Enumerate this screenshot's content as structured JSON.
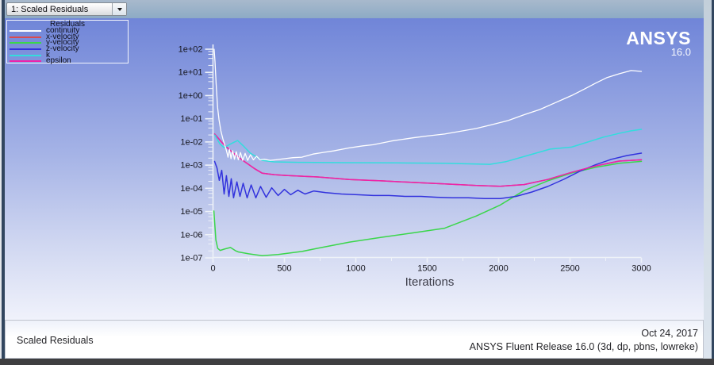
{
  "window": {
    "selector": {
      "value": "1: Scaled Residuals"
    },
    "logo": {
      "brand": "ANSYS",
      "version": "16.0"
    },
    "status_bar": {
      "left_text": "Scaled Residuals",
      "date": "Oct 24, 2017",
      "release": "ANSYS Fluent Release 16.0 (3d, dp, pbns, lowreke)"
    }
  },
  "legend": {
    "title": "Residuals"
  },
  "chart_data": {
    "type": "line",
    "title": "Scaled Residuals",
    "xlabel": "Iterations",
    "ylabel": "",
    "xlim": [
      0,
      3000
    ],
    "x_ticks": [
      0,
      500,
      1000,
      1500,
      2000,
      2500,
      3000
    ],
    "x_minor_step": 250,
    "y_scale": "log",
    "ylim": [
      1e-07,
      100.0
    ],
    "y_tick_labels": [
      "1e+02",
      "1e+01",
      "1e+00",
      "1e-01",
      "1e-02",
      "1e-03",
      "1e-04",
      "1e-05",
      "1e-06",
      "1e-07"
    ],
    "y_minor_divisions": [
      2,
      4,
      6,
      8
    ],
    "grid": false,
    "legend_position": "top-left",
    "axis_color": "#eef2f8",
    "tick_label_color": "#16161e",
    "series": [
      {
        "name": "continuity",
        "color": "#ffffff",
        "points": [
          [
            8,
            100
          ],
          [
            14,
            30
          ],
          [
            22,
            3
          ],
          [
            32,
            0.3
          ],
          [
            42,
            0.09
          ],
          [
            55,
            0.03
          ],
          [
            70,
            0.013
          ],
          [
            85,
            0.0066
          ],
          [
            95,
            0.004
          ],
          [
            105,
            0.0022
          ],
          [
            115,
            0.0048
          ],
          [
            126,
            0.0019
          ],
          [
            138,
            0.0042
          ],
          [
            150,
            0.0018
          ],
          [
            163,
            0.0038
          ],
          [
            177,
            0.0017
          ],
          [
            192,
            0.0035
          ],
          [
            208,
            0.0016
          ],
          [
            225,
            0.0032
          ],
          [
            243,
            0.0016
          ],
          [
            262,
            0.0028
          ],
          [
            283,
            0.0017
          ],
          [
            305,
            0.0024
          ],
          [
            330,
            0.0017
          ],
          [
            360,
            0.0018
          ],
          [
            400,
            0.0016
          ],
          [
            440,
            0.0017
          ],
          [
            500,
            0.0019
          ],
          [
            560,
            0.0021
          ],
          [
            622,
            0.0022
          ],
          [
            700,
            0.003
          ],
          [
            780,
            0.0036
          ],
          [
            844,
            0.0041
          ],
          [
            950,
            0.0055
          ],
          [
            1050,
            0.0068
          ],
          [
            1122,
            0.0076
          ],
          [
            1250,
            0.011
          ],
          [
            1400,
            0.015
          ],
          [
            1500,
            0.018
          ],
          [
            1622,
            0.022
          ],
          [
            1750,
            0.03
          ],
          [
            1844,
            0.038
          ],
          [
            1950,
            0.055
          ],
          [
            2067,
            0.084
          ],
          [
            2180,
            0.15
          ],
          [
            2289,
            0.25
          ],
          [
            2400,
            0.5
          ],
          [
            2511,
            1.0
          ],
          [
            2600,
            1.9
          ],
          [
            2678,
            3.4
          ],
          [
            2760,
            6.0
          ],
          [
            2844,
            8.7
          ],
          [
            2928,
            12.0
          ],
          [
            3000,
            11.0
          ]
        ]
      },
      {
        "name": "x-velocity",
        "color": "#d84a50",
        "points": [
          [
            11,
            0.022
          ],
          [
            67,
            0.0088
          ],
          [
            122,
            0.0042
          ],
          [
            178,
            0.0022
          ],
          [
            233,
            0.00126
          ],
          [
            289,
            0.00072
          ],
          [
            344,
            0.00045
          ],
          [
            428,
            0.00039
          ],
          [
            511,
            0.00036
          ],
          [
            733,
            0.00031
          ],
          [
            956,
            0.00024
          ],
          [
            1178,
            0.00021
          ],
          [
            1400,
            0.00018
          ],
          [
            1622,
            0.000155
          ],
          [
            1844,
            0.000133
          ],
          [
            2011,
            0.000123
          ],
          [
            2178,
            0.000145
          ],
          [
            2344,
            0.00024
          ],
          [
            2511,
            0.00049
          ],
          [
            2678,
            0.00092
          ],
          [
            2844,
            0.0015
          ],
          [
            3000,
            0.0017
          ]
        ]
      },
      {
        "name": "y-velocity",
        "color": "#3bd64b",
        "points": [
          [
            6,
            1.05e-05
          ],
          [
            20,
            6e-07
          ],
          [
            33,
            2.6e-07
          ],
          [
            50,
            2.1e-07
          ],
          [
            80,
            2.4e-07
          ],
          [
            122,
            2.8e-07
          ],
          [
            160,
            2e-07
          ],
          [
            178,
            1.8e-07
          ],
          [
            250,
            1.5e-07
          ],
          [
            344,
            1.25e-07
          ],
          [
            456,
            1.4e-07
          ],
          [
            622,
            1.9e-07
          ],
          [
            733,
            2.6e-07
          ],
          [
            956,
            4.8e-07
          ],
          [
            1178,
            7.7e-07
          ],
          [
            1400,
            1.2e-06
          ],
          [
            1622,
            1.9e-06
          ],
          [
            1844,
            6.4e-06
          ],
          [
            2011,
            1.9e-05
          ],
          [
            2178,
            8e-05
          ],
          [
            2344,
            0.00021
          ],
          [
            2511,
            0.00046
          ],
          [
            2678,
            0.0008
          ],
          [
            2844,
            0.0012
          ],
          [
            3000,
            0.00145
          ]
        ]
      },
      {
        "name": "z-velocity",
        "color": "#3333dd",
        "points": [
          [
            11,
            0.00145
          ],
          [
            28,
            0.00076
          ],
          [
            44,
            0.00022
          ],
          [
            61,
            0.0006
          ],
          [
            78,
            5.7e-05
          ],
          [
            94,
            0.00035
          ],
          [
            111,
            4.5e-05
          ],
          [
            128,
            0.00026
          ],
          [
            144,
            3.9e-05
          ],
          [
            167,
            0.00019
          ],
          [
            189,
            4.5e-05
          ],
          [
            211,
            0.000165
          ],
          [
            239,
            3.9e-05
          ],
          [
            267,
            0.00014
          ],
          [
            300,
            3.9e-05
          ],
          [
            333,
            0.00012
          ],
          [
            372,
            4.1e-05
          ],
          [
            411,
            0.000105
          ],
          [
            456,
            4.9e-05
          ],
          [
            500,
            9e-05
          ],
          [
            544,
            5.3e-05
          ],
          [
            594,
            8.3e-05
          ],
          [
            644,
            5.7e-05
          ],
          [
            706,
            7.7e-05
          ],
          [
            789,
            6.5e-05
          ],
          [
            900,
            5.7e-05
          ],
          [
            1011,
            5.3e-05
          ],
          [
            1122,
            4.9e-05
          ],
          [
            1233,
            4.9e-05
          ],
          [
            1344,
            4.5e-05
          ],
          [
            1456,
            4.5e-05
          ],
          [
            1567,
            4.1e-05
          ],
          [
            1678,
            3.9e-05
          ],
          [
            1789,
            3.9e-05
          ],
          [
            1900,
            3.6e-05
          ],
          [
            2011,
            3.6e-05
          ],
          [
            2122,
            4.5e-05
          ],
          [
            2233,
            6.9e-05
          ],
          [
            2344,
            0.00012
          ],
          [
            2456,
            0.000245
          ],
          [
            2567,
            0.00054
          ],
          [
            2678,
            0.00103
          ],
          [
            2789,
            0.00178
          ],
          [
            2900,
            0.0026
          ],
          [
            3000,
            0.0033
          ]
        ]
      },
      {
        "name": "k",
        "color": "#33dddd",
        "points": [
          [
            12,
            0.02
          ],
          [
            50,
            0.008
          ],
          [
            78,
            0.0057
          ],
          [
            120,
            0.008
          ],
          [
            172,
            0.0115
          ],
          [
            210,
            0.007
          ],
          [
            261,
            0.0033
          ],
          [
            344,
            0.0016
          ],
          [
            428,
            0.00138
          ],
          [
            600,
            0.00132
          ],
          [
            900,
            0.00128
          ],
          [
            1289,
            0.00125
          ],
          [
            1622,
            0.0012
          ],
          [
            1939,
            0.00108
          ],
          [
            2050,
            0.0014
          ],
          [
            2161,
            0.0022
          ],
          [
            2361,
            0.0049
          ],
          [
            2511,
            0.006
          ],
          [
            2733,
            0.016
          ],
          [
            2850,
            0.024
          ],
          [
            2928,
            0.03
          ],
          [
            3000,
            0.035
          ]
        ]
      },
      {
        "name": "epsilon",
        "color": "#ee22aa",
        "points": [
          [
            11,
            0.022
          ],
          [
            67,
            0.0088
          ],
          [
            122,
            0.0042
          ],
          [
            178,
            0.0022
          ],
          [
            233,
            0.00126
          ],
          [
            289,
            0.00072
          ],
          [
            344,
            0.00045
          ],
          [
            428,
            0.00039
          ],
          [
            511,
            0.00036
          ],
          [
            733,
            0.00031
          ],
          [
            956,
            0.00024
          ],
          [
            1178,
            0.00021
          ],
          [
            1400,
            0.00018
          ],
          [
            1622,
            0.000155
          ],
          [
            1844,
            0.000133
          ],
          [
            2011,
            0.000123
          ],
          [
            2178,
            0.000145
          ],
          [
            2344,
            0.00024
          ],
          [
            2511,
            0.00049
          ],
          [
            2678,
            0.00092
          ],
          [
            2844,
            0.0015
          ],
          [
            3000,
            0.0017
          ]
        ]
      }
    ]
  }
}
